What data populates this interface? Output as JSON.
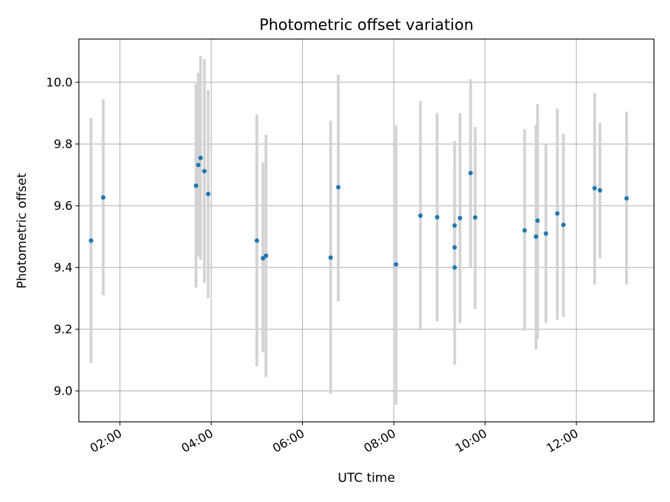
{
  "chart_data": {
    "type": "scatter",
    "title": "Photometric offset variation",
    "xlabel": "UTC time",
    "ylabel": "Photometric offset",
    "xlim": [
      "01:06",
      "13:42"
    ],
    "ylim": [
      8.9,
      10.14
    ],
    "xticks": [
      "02:00",
      "04:00",
      "06:00",
      "08:00",
      "10:00",
      "12:00"
    ],
    "yticks": [
      9.0,
      9.2,
      9.4,
      9.6,
      9.8,
      10.0
    ],
    "grid": true,
    "errorbar_color": "#d3d3d3",
    "point_color": "#1f77b4",
    "points": [
      {
        "x": "01:22",
        "y": 9.487,
        "lo": 9.09,
        "hi": 9.885
      },
      {
        "x": "01:38",
        "y": 9.627,
        "lo": 9.31,
        "hi": 9.945
      },
      {
        "x": "03:40",
        "y": 9.665,
        "lo": 9.335,
        "hi": 9.995
      },
      {
        "x": "03:43",
        "y": 9.732,
        "lo": 9.435,
        "hi": 10.03
      },
      {
        "x": "03:46",
        "y": 9.755,
        "lo": 9.425,
        "hi": 10.085
      },
      {
        "x": "03:51",
        "y": 9.712,
        "lo": 9.35,
        "hi": 10.075
      },
      {
        "x": "03:56",
        "y": 9.638,
        "lo": 9.3,
        "hi": 9.975
      },
      {
        "x": "05:00",
        "y": 9.487,
        "lo": 9.08,
        "hi": 9.895
      },
      {
        "x": "05:08",
        "y": 9.43,
        "lo": 9.125,
        "hi": 9.74
      },
      {
        "x": "05:12",
        "y": 9.438,
        "lo": 9.045,
        "hi": 9.83
      },
      {
        "x": "06:37",
        "y": 9.432,
        "lo": 8.99,
        "hi": 9.875
      },
      {
        "x": "06:47",
        "y": 9.66,
        "lo": 9.29,
        "hi": 10.025
      },
      {
        "x": "08:03",
        "y": 9.41,
        "lo": 8.955,
        "hi": 9.86
      },
      {
        "x": "08:35",
        "y": 9.568,
        "lo": 9.2,
        "hi": 9.94
      },
      {
        "x": "08:57",
        "y": 9.563,
        "lo": 9.225,
        "hi": 9.9
      },
      {
        "x": "09:20",
        "y": 9.536,
        "lo": 9.26,
        "hi": 9.81
      },
      {
        "x": "09:20",
        "y": 9.465,
        "lo": 9.25,
        "hi": 9.8
      },
      {
        "x": "09:20",
        "y": 9.4,
        "lo": 9.085,
        "hi": 9.715
      },
      {
        "x": "09:27",
        "y": 9.56,
        "lo": 9.22,
        "hi": 9.9
      },
      {
        "x": "09:41",
        "y": 9.706,
        "lo": 9.4,
        "hi": 10.01
      },
      {
        "x": "09:47",
        "y": 9.562,
        "lo": 9.265,
        "hi": 9.855
      },
      {
        "x": "10:52",
        "y": 9.52,
        "lo": 9.195,
        "hi": 9.848
      },
      {
        "x": "11:07",
        "y": 9.5,
        "lo": 9.135,
        "hi": 9.862
      },
      {
        "x": "11:09",
        "y": 9.552,
        "lo": 9.17,
        "hi": 9.93
      },
      {
        "x": "11:20",
        "y": 9.51,
        "lo": 9.22,
        "hi": 9.8
      },
      {
        "x": "11:35",
        "y": 9.575,
        "lo": 9.23,
        "hi": 9.915
      },
      {
        "x": "11:43",
        "y": 9.538,
        "lo": 9.24,
        "hi": 9.833
      },
      {
        "x": "12:24",
        "y": 9.657,
        "lo": 9.345,
        "hi": 9.965
      },
      {
        "x": "12:31",
        "y": 9.65,
        "lo": 9.43,
        "hi": 9.868
      },
      {
        "x": "13:06",
        "y": 9.624,
        "lo": 9.345,
        "hi": 9.905
      }
    ]
  }
}
